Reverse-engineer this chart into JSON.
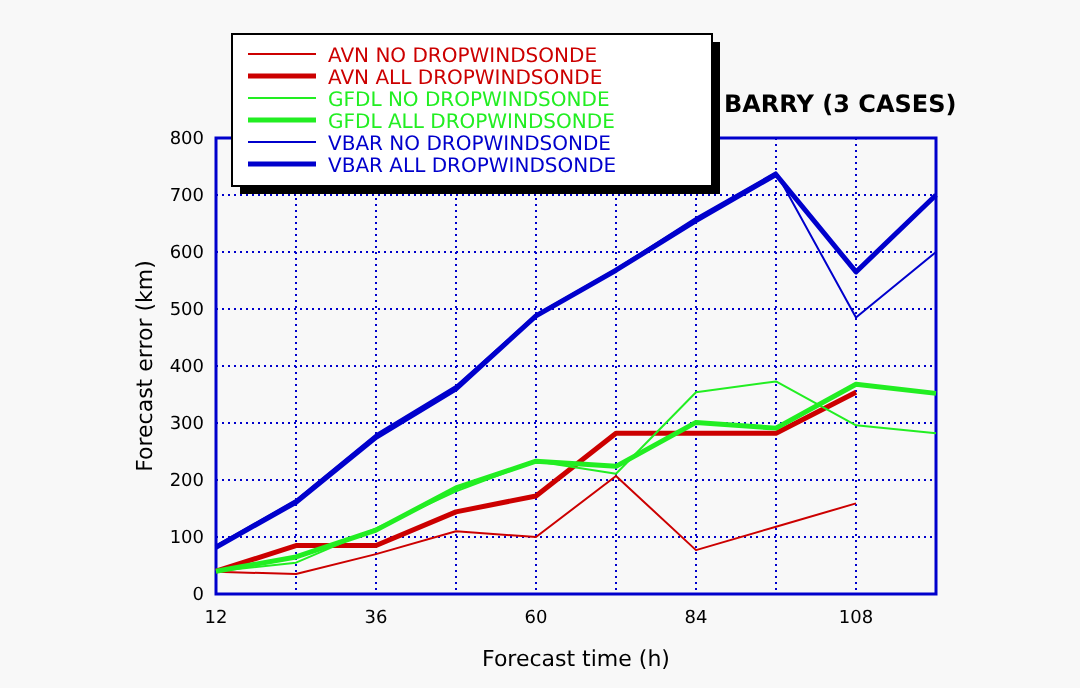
{
  "chart_data": {
    "type": "line",
    "title": "BARRY (3 CASES)",
    "xlabel": "Forecast time (h)",
    "ylabel": "Forecast error (km)",
    "x": [
      12,
      24,
      36,
      48,
      60,
      72,
      84,
      96,
      108,
      120
    ],
    "xlim": [
      12,
      120
    ],
    "xticks": [
      12,
      {
        "value": 24,
        "label": null
      },
      36,
      {
        "value": 48,
        "label": null
      },
      60,
      {
        "value": 72,
        "label": null
      },
      84,
      {
        "value": 96,
        "label": null
      },
      108,
      {
        "value": 120,
        "label": null
      }
    ],
    "ylim": [
      0,
      800
    ],
    "yticks": [
      0,
      100,
      200,
      300,
      400,
      500,
      600,
      700,
      800
    ],
    "grid": true,
    "legend": "top left",
    "marker": "none",
    "series": [
      {
        "name": "AVN NO DROPWINDSONDE",
        "color": "#cc0000",
        "values": [
          39,
          35,
          70,
          110,
          100,
          207,
          77,
          118,
          159,
          null
        ]
      },
      {
        "name": "AVN ALL DROPWINDSONDE",
        "color": "#cc0000",
        "values": [
          40,
          85,
          85,
          144,
          172,
          282,
          282,
          282,
          354,
          null
        ]
      },
      {
        "name": "GFDL NO DROPWINDSONDE",
        "color": "#22ee22",
        "values": [
          40,
          55,
          115,
          180,
          233,
          211,
          354,
          373,
          296,
          282
        ]
      },
      {
        "name": "GFDL ALL DROPWINDSONDE",
        "color": "#22ee22",
        "values": [
          40,
          65,
          112,
          186,
          233,
          224,
          301,
          291,
          368,
          352
        ]
      },
      {
        "name": "VBAR NO DROPWINDSONDE",
        "color": "#0000cc",
        "values": [
          85,
          165,
          280,
          365,
          490,
          570,
          660,
          740,
          485,
          600
        ]
      },
      {
        "name": "VBAR ALL DROPWINDSONDE",
        "color": "#0000cc",
        "values": [
          82,
          161,
          275,
          360,
          488,
          568,
          655,
          736,
          565,
          700
        ]
      }
    ]
  }
}
